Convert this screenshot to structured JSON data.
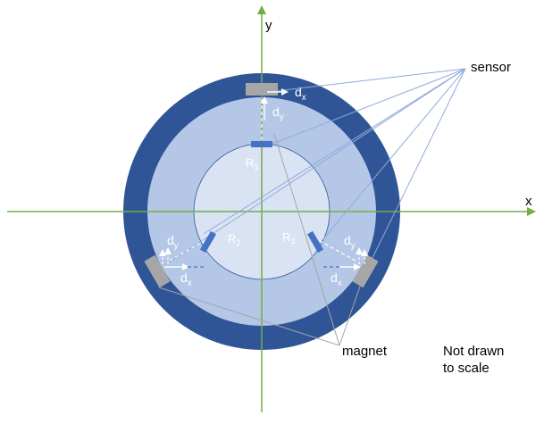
{
  "axes": {
    "x_label": "x",
    "y_label": "y"
  },
  "labels": {
    "sensor": "sensor",
    "magnet": "magnet",
    "note_line1": "Not drawn",
    "note_line2": "to scale",
    "r1": "R",
    "r1_sub": "1",
    "r2": "R",
    "r2_sub": "2",
    "r3": "R",
    "r3_sub": "3",
    "d": "d",
    "sub_x": "x",
    "sub_y": "y"
  },
  "colors": {
    "outer_ring": "#2f5597",
    "middle_ring": "#b4c7e7",
    "inner_disc": "#dae3f3",
    "axis": "#70ad47",
    "magnet": "#4472c4",
    "sensor": "#a6a6a6",
    "pointer": "#8faadc",
    "gray_pointer": "#a6a6a6",
    "inner_edge": "#2f5597"
  }
}
